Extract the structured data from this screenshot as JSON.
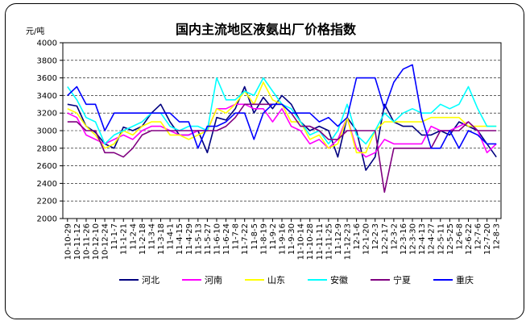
{
  "chart_data": {
    "type": "line",
    "title": "国内主流地区液氨出厂价格指数",
    "ylabel": "元/吨",
    "xlabel": "",
    "ylim": [
      2000,
      4000
    ],
    "yticks": [
      2000,
      2200,
      2400,
      2600,
      2800,
      3000,
      3200,
      3400,
      3600,
      3800,
      4000
    ],
    "grid": "horizontal-dashed",
    "legend_position": "bottom",
    "x_labels": [
      "10-10-29",
      "10-11-12",
      "10-11-26",
      "10-12-10",
      "10-12-24",
      "11-1-7",
      "11-1-21",
      "11-2-4",
      "11-2-18",
      "11-3-4",
      "11-3-18",
      "11-4-1",
      "11-4-15",
      "11-4-29",
      "11-5-13",
      "11-5-27",
      "11-6-10",
      "11-6-24",
      "11-7-8",
      "11-7-22",
      "11-8-5",
      "11-8-19",
      "11-9-2",
      "11-9-16",
      "11-9-30",
      "11-10-14",
      "11-10-28",
      "11-11-11",
      "11-11-25",
      "11-12-9",
      "11-12-23",
      "12-1-6",
      "12-1-20",
      "12-2-3",
      "12-2-17",
      "12-3-2",
      "12-3-16",
      "12-3-30",
      "12-4-13",
      "12-4-27",
      "12-5-11",
      "12-5-25",
      "12-6-8",
      "12-6-22",
      "12-7-6",
      "12-7-20",
      "12-8-3"
    ],
    "series": [
      {
        "name": "河北",
        "color": "#000080",
        "values": [
          3300,
          3280,
          3050,
          2980,
          2850,
          2800,
          3040,
          3000,
          3050,
          3200,
          3300,
          3100,
          2950,
          2950,
          3000,
          2750,
          3150,
          3120,
          3250,
          3500,
          3200,
          3380,
          3250,
          3400,
          3300,
          3100,
          3000,
          3050,
          3000,
          2700,
          3150,
          3000,
          2550,
          2700,
          3300,
          3100,
          3050,
          3050,
          2950,
          2950,
          3000,
          2950,
          3100,
          3050,
          3000,
          2850,
          2700
        ]
      },
      {
        "name": "河南",
        "color": "#ff00ff",
        "values": [
          3200,
          3150,
          2950,
          2900,
          2850,
          2900,
          2950,
          2900,
          3000,
          3050,
          3050,
          3000,
          2950,
          2950,
          3000,
          3000,
          3250,
          3250,
          3300,
          3300,
          3250,
          3250,
          3100,
          3250,
          3050,
          3000,
          2850,
          2900,
          2800,
          2900,
          3150,
          2800,
          2700,
          2750,
          2900,
          2850,
          2850,
          2850,
          2850,
          3050,
          3000,
          3000,
          3050,
          3100,
          3000,
          2750,
          2850
        ]
      },
      {
        "name": "山东",
        "color": "#ffff00",
        "values": [
          3250,
          3200,
          3050,
          2950,
          2800,
          2850,
          3000,
          2950,
          3050,
          3100,
          3100,
          2950,
          2950,
          2900,
          2950,
          3000,
          3250,
          3200,
          3300,
          3450,
          3300,
          3550,
          3350,
          3300,
          3100,
          3100,
          2900,
          2950,
          2800,
          2850,
          3150,
          2750,
          2750,
          3000,
          3100,
          3100,
          3100,
          3100,
          3100,
          3150,
          3150,
          3150,
          3150,
          3050,
          3050,
          3050,
          3050
        ]
      },
      {
        "name": "安徽",
        "color": "#00ffff",
        "values": [
          3500,
          3350,
          3150,
          3100,
          2850,
          2950,
          3000,
          3050,
          3100,
          3200,
          3200,
          3050,
          3000,
          3050,
          3050,
          3000,
          3600,
          3350,
          3350,
          3450,
          3400,
          3600,
          3450,
          3300,
          3250,
          3100,
          2950,
          3000,
          2850,
          3000,
          3300,
          2950,
          2850,
          3000,
          3200,
          3100,
          3200,
          3250,
          3200,
          3200,
          3300,
          3250,
          3300,
          3500,
          3250,
          3050,
          3050
        ]
      },
      {
        "name": "宁夏",
        "color": "#800080",
        "values": [
          3100,
          3100,
          3000,
          3000,
          2750,
          2750,
          2700,
          2800,
          2950,
          3000,
          3000,
          3000,
          3000,
          3000,
          3000,
          3000,
          3000,
          3050,
          3150,
          3300,
          3300,
          3300,
          3300,
          3300,
          3200,
          3050,
          3050,
          3000,
          2900,
          2900,
          3000,
          3000,
          3000,
          3000,
          2300,
          2800,
          2800,
          2800,
          2800,
          2800,
          3000,
          3000,
          3000,
          3100,
          3000,
          3000,
          3000
        ]
      },
      {
        "name": "重庆",
        "color": "#0000ff",
        "values": [
          3400,
          3500,
          3300,
          3300,
          3000,
          3200,
          3200,
          3200,
          3200,
          3200,
          3200,
          3200,
          3100,
          3100,
          2800,
          3050,
          3050,
          3100,
          3200,
          3200,
          2900,
          3200,
          3300,
          3300,
          3200,
          3200,
          3200,
          3100,
          3150,
          3050,
          3150,
          3600,
          3600,
          3600,
          3250,
          3550,
          3700,
          3750,
          3150,
          2800,
          2800,
          3000,
          2800,
          3000,
          2950,
          2850,
          2850
        ]
      }
    ]
  }
}
